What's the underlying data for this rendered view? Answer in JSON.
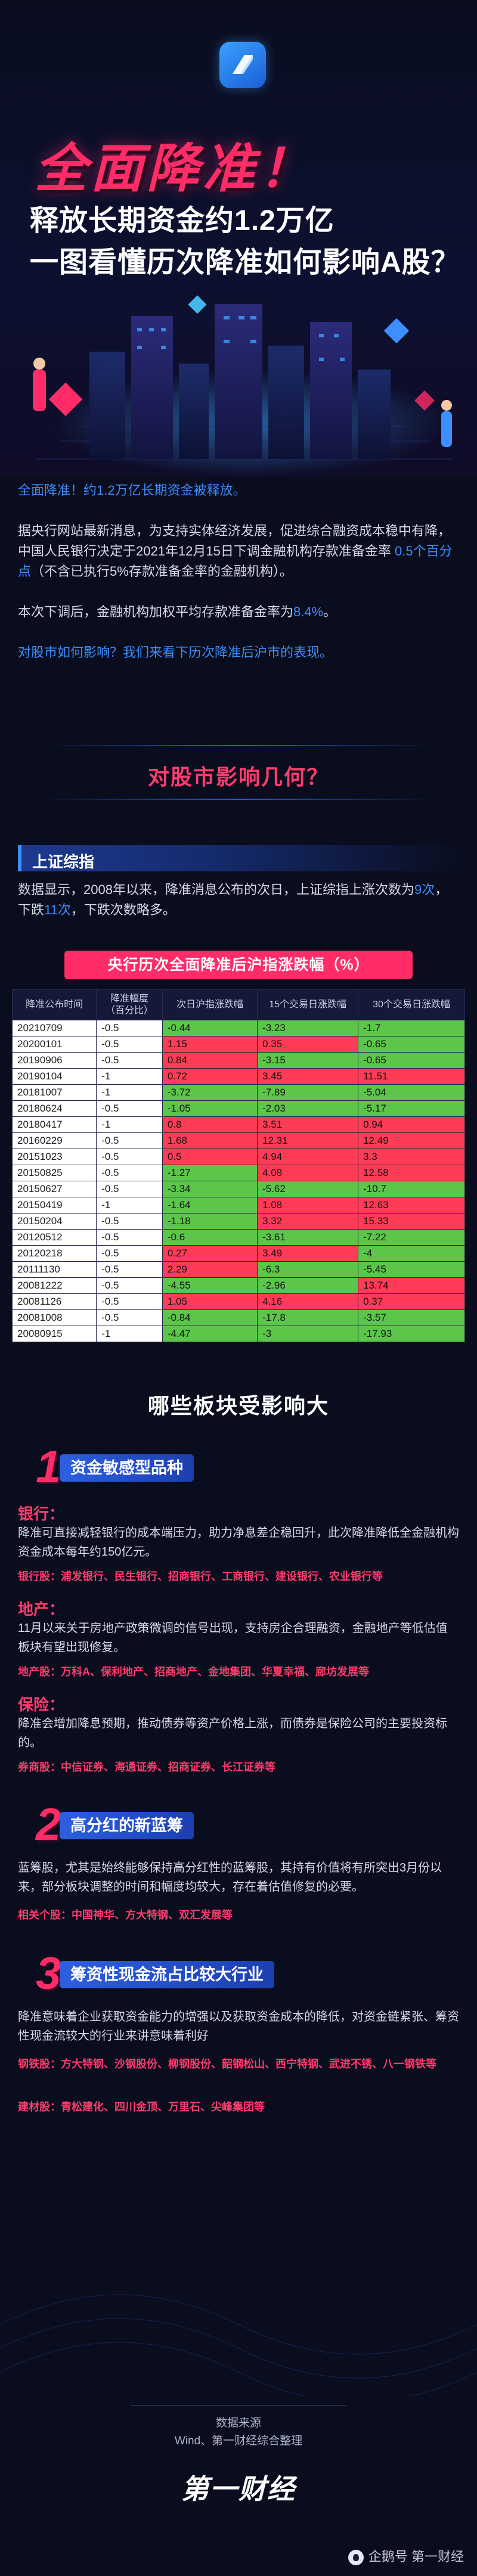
{
  "hero": {
    "title": "全面降准！",
    "subtitle1": "释放长期资金约1.2万亿",
    "subtitle2": "一图看懂历次降准如何影响A股？"
  },
  "intro": {
    "p1": "全面降准！约1.2万亿长期资金被释放。",
    "p2_a": "据央行网站最新消息，为支持实体经济发展，促进综合融资成本稳中有降，中国人民银行决定于2021年12月15日下调金融机构存款准备金率 ",
    "p2_hl": "0.5个百分点",
    "p2_b": "（不含已执行5%存款准备金率的金融机构）。",
    "p3_a": "本次下调后，金融机构加权平均存款准备金率为",
    "p3_hl": "8.4%",
    "p3_b": "。",
    "p4": "对股市如何影响？我们来看下历次降准后沪市的表现。"
  },
  "section1": {
    "title": "对股市影响几何？"
  },
  "index": {
    "label": "上证综指",
    "text_a": "数据显示，2008年以来，降准消息公布的次日，上证综指上涨次数为",
    "up": "9次",
    "text_b": "，下跌",
    "down": "11次",
    "text_c": "，下跌次数略多。"
  },
  "table": {
    "title": "央行历次全面降准后沪指涨跌幅（%）",
    "headers": [
      "降准公布时间",
      "降准幅度\n（百分比）",
      "次日沪指涨跌幅",
      "15个交易日涨跌幅",
      "30个交易日涨跌幅"
    ],
    "rows": [
      [
        "20210709",
        "-0.5",
        "-0.44",
        "-3.23",
        "-1.7"
      ],
      [
        "20200101",
        "-0.5",
        "1.15",
        "0.35",
        "-0.65"
      ],
      [
        "20190906",
        "-0.5",
        "0.84",
        "-3.15",
        "-0.65"
      ],
      [
        "20190104",
        "-1",
        "0.72",
        "3.45",
        "11.51"
      ],
      [
        "20181007",
        "-1",
        "-3.72",
        "-7.89",
        "-5.04"
      ],
      [
        "20180624",
        "-0.5",
        "-1.05",
        "-2.03",
        "-5.17"
      ],
      [
        "20180417",
        "-1",
        "0.8",
        "3.51",
        "0.94"
      ],
      [
        "20160229",
        "-0.5",
        "1.68",
        "12.31",
        "12.49"
      ],
      [
        "20151023",
        "-0.5",
        "0.5",
        "4.94",
        "3.3"
      ],
      [
        "20150825",
        "-0.5",
        "-1.27",
        "4.08",
        "12.58"
      ],
      [
        "20150627",
        "-0.5",
        "-3.34",
        "-5.62",
        "-10.7"
      ],
      [
        "20150419",
        "-1",
        "-1.64",
        "1.08",
        "12.63"
      ],
      [
        "20150204",
        "-0.5",
        "-1.18",
        "3.32",
        "15.33"
      ],
      [
        "20120512",
        "-0.5",
        "-0.6",
        "-3.61",
        "-7.22"
      ],
      [
        "20120218",
        "-0.5",
        "0.27",
        "3.49",
        "-4"
      ],
      [
        "20111130",
        "-0.5",
        "2.29",
        "-6.3",
        "-5.45"
      ],
      [
        "20081222",
        "-0.5",
        "-4.55",
        "-2.96",
        "13.74"
      ],
      [
        "20081126",
        "-0.5",
        "1.05",
        "4.16",
        "0.37"
      ],
      [
        "20081008",
        "-0.5",
        "-0.84",
        "-17.8",
        "-3.57"
      ],
      [
        "20080915",
        "-1",
        "-4.47",
        "-3",
        "-17.93"
      ]
    ],
    "colors": {
      "pos": "#ff3c55",
      "neg": "#5cc64a",
      "neutral": "#ffffff"
    }
  },
  "section2": {
    "title": "哪些板块受影响大"
  },
  "blocks": {
    "b1": {
      "num": "1",
      "pill": "资金敏感型品种",
      "bank_cat": "银行：",
      "bank_text": "降准可直接减轻银行的成本端压力，助力净息差企稳回升，此次降准降低全金融机构资金成本每年约150亿元。",
      "bank_stocks": "银行股：浦发银行、民生银行、招商银行、工商银行、建设银行、农业银行等",
      "re_cat": "地产：",
      "re_text": "11月以来关于房地产政策微调的信号出现，支持房企合理融资，金融地产等低估值板块有望出现修复。",
      "re_stocks": "地产股：万科A、保利地产、招商地产、金地集团、华夏幸福、廊坊发展等",
      "ins_cat": "保险：",
      "ins_text": "降准会增加降息预期，推动债券等资产价格上涨，而债券是保险公司的主要投资标的。",
      "ins_stocks": "券商股：中信证券、海通证券、招商证券、长江证券等"
    },
    "b2": {
      "num": "2",
      "pill": "高分红的新蓝筹",
      "text": "蓝筹股，尤其是始终能够保持高分红性的蓝筹股，其持有价值将有所突出3月份以来，部分板块调整的时间和幅度均较大，存在着估值修复的必要。",
      "stocks": "相关个股：中国神华、方大特钢、双汇发展等"
    },
    "b3": {
      "num": "3",
      "pill": "筹资性现金流占比较大行业",
      "text": "降准意味着企业获取资金能力的增强以及获取资金成本的降低，对资金链紧张、筹资性现金流较大的行业来讲意味着利好",
      "steel": "钢铁股：方大特钢、沙钢股份、柳钢股份、韶钢松山、西宁特钢、武进不锈、八一钢铁等",
      "build": "建材股：青松建化、四川金顶、万里石、尖峰集团等"
    }
  },
  "footer": {
    "src_label": "数据来源",
    "src_text": "Wind、第一财经综合整理",
    "brand": "第一财经",
    "watermark": "企鹅号 第一财经"
  }
}
